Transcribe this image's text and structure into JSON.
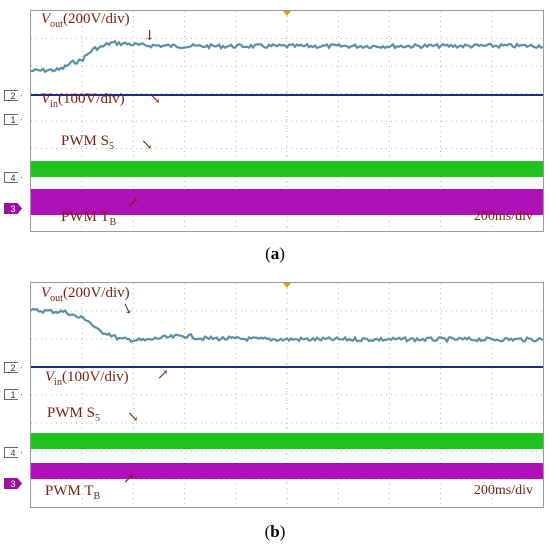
{
  "colors": {
    "vout": "#5a90a4",
    "vin": "#1f2a8a",
    "pwm_s5": "#1fc21f",
    "pwm_tb": "#b010b8",
    "grid": "#b8b8b8",
    "label": "#7a1f0a"
  },
  "chart_data": [
    {
      "type": "line",
      "panel": "a",
      "time_per_div": "200ms/div",
      "channel_markers": [
        "2",
        "1",
        "4",
        "3"
      ],
      "traces": [
        {
          "name_prefix": "V",
          "name_sub": "out",
          "scale": "(200V/div)",
          "behavior": "rises from low level to higher steady level"
        },
        {
          "name_prefix": "V",
          "name_sub": "in",
          "scale": "(100V/div)",
          "behavior": "flat"
        },
        {
          "name_prefix": "PWM S",
          "name_sub": "5",
          "scale": "",
          "behavior": "switching band"
        },
        {
          "name_prefix": "PWM T",
          "name_sub": "B",
          "scale": "",
          "behavior": "switching band"
        }
      ],
      "vout_profile": {
        "t": [
          0,
          0.5,
          0.9,
          1.3,
          1.6,
          1.8,
          2.2,
          3,
          5,
          10
        ],
        "level": [
          0.95,
          1.0,
          1.5,
          2.3,
          2.6,
          2.55,
          2.45,
          2.4,
          2.4,
          2.42
        ]
      }
    },
    {
      "type": "line",
      "panel": "b",
      "time_per_div": "200ms/div",
      "channel_markers": [
        "2",
        "1",
        "4",
        "3"
      ],
      "traces": [
        {
          "name_prefix": "V",
          "name_sub": "out",
          "scale": "(200V/div)",
          "behavior": "falls from high level to lower steady level"
        },
        {
          "name_prefix": "V",
          "name_sub": "in",
          "scale": "(100V/div)",
          "behavior": "flat"
        },
        {
          "name_prefix": "PWM S",
          "name_sub": "5",
          "scale": "",
          "behavior": "switching band"
        },
        {
          "name_prefix": "PWM T",
          "name_sub": "B",
          "scale": "",
          "behavior": "switching band"
        }
      ],
      "vout_profile": {
        "t": [
          0,
          0.6,
          1.0,
          1.4,
          1.8,
          2.2,
          2.6,
          3.0,
          3.4,
          5,
          10
        ],
        "level": [
          2.8,
          2.75,
          2.4,
          1.6,
          1.2,
          1.15,
          1.3,
          1.4,
          1.25,
          1.2,
          1.2
        ]
      }
    }
  ],
  "captions": {
    "a": "a",
    "b": "b"
  }
}
